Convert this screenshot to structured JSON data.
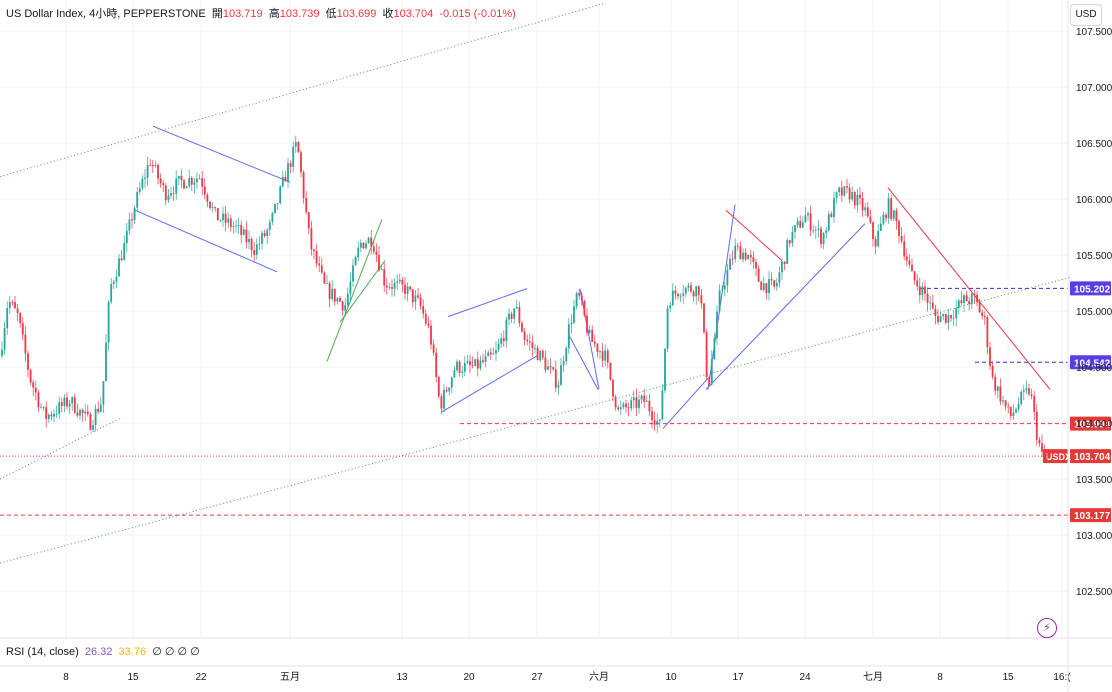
{
  "legend": {
    "symbol": "US Dollar Index, 4小時, PEPPERSTONE",
    "open_label": "開",
    "open": "103.719",
    "high_label": "高",
    "high": "103.739",
    "low_label": "低",
    "low": "103.699",
    "close_label": "收",
    "close": "103.704",
    "change": "-0.015 (-0.01%)"
  },
  "currency": "USD",
  "rsi": {
    "label": "RSI (14, close)",
    "value1": "26.32",
    "value2": "33.76",
    "ghost": "∅ ∅ ∅ ∅"
  },
  "colors": {
    "up": "#26a69a",
    "down": "#f23645",
    "channel": "#5c6bf5",
    "green_line": "#4caf50",
    "red_line": "#f23645",
    "dotted_green": "#43a047",
    "price_bg": "#e53935",
    "marker_bg": "#5b3de8"
  },
  "chart_data": {
    "type": "candlestick",
    "y_range": [
      102.3,
      107.75
    ],
    "y_ticks": [
      "107.500",
      "107.000",
      "106.500",
      "106.000",
      "105.500",
      "105.000",
      "104.500",
      "104.000",
      "103.500",
      "103.000",
      "102.500"
    ],
    "x_ticks": [
      {
        "label": "8",
        "x": 66
      },
      {
        "label": "15",
        "x": 133
      },
      {
        "label": "22",
        "x": 201
      },
      {
        "label": "五月",
        "x": 290
      },
      {
        "label": "13",
        "x": 402
      },
      {
        "label": "20",
        "x": 469
      },
      {
        "label": "27",
        "x": 537
      },
      {
        "label": "六月",
        "x": 599
      },
      {
        "label": "10",
        "x": 671
      },
      {
        "label": "17",
        "x": 738
      },
      {
        "label": "24",
        "x": 805
      },
      {
        "label": "七月",
        "x": 873
      },
      {
        "label": "8",
        "x": 940
      },
      {
        "label": "15",
        "x": 1008
      },
      {
        "label": "16:(",
        "x": 1062
      }
    ],
    "path_knots": [
      [
        0,
        104.6
      ],
      [
        8,
        105.1
      ],
      [
        18,
        104.95
      ],
      [
        30,
        104.4
      ],
      [
        45,
        104.05
      ],
      [
        70,
        104.2
      ],
      [
        90,
        104.0
      ],
      [
        102,
        104.2
      ],
      [
        110,
        105.2
      ],
      [
        125,
        105.6
      ],
      [
        135,
        105.95
      ],
      [
        150,
        106.35
      ],
      [
        165,
        106.05
      ],
      [
        180,
        106.15
      ],
      [
        200,
        106.2
      ],
      [
        215,
        105.85
      ],
      [
        235,
        105.75
      ],
      [
        255,
        105.55
      ],
      [
        270,
        105.75
      ],
      [
        285,
        106.2
      ],
      [
        297,
        106.5
      ],
      [
        310,
        105.6
      ],
      [
        325,
        105.2
      ],
      [
        345,
        105.05
      ],
      [
        360,
        105.6
      ],
      [
        372,
        105.65
      ],
      [
        385,
        105.25
      ],
      [
        405,
        105.2
      ],
      [
        420,
        105.05
      ],
      [
        430,
        104.8
      ],
      [
        440,
        104.15
      ],
      [
        455,
        104.5
      ],
      [
        475,
        104.5
      ],
      [
        495,
        104.6
      ],
      [
        515,
        105.05
      ],
      [
        525,
        104.75
      ],
      [
        540,
        104.6
      ],
      [
        558,
        104.35
      ],
      [
        570,
        104.9
      ],
      [
        578,
        105.15
      ],
      [
        590,
        104.75
      ],
      [
        605,
        104.6
      ],
      [
        618,
        104.1
      ],
      [
        630,
        104.15
      ],
      [
        645,
        104.2
      ],
      [
        660,
        103.97
      ],
      [
        668,
        105.1
      ],
      [
        680,
        105.2
      ],
      [
        700,
        105.2
      ],
      [
        708,
        104.3
      ],
      [
        720,
        105.15
      ],
      [
        735,
        105.55
      ],
      [
        748,
        105.5
      ],
      [
        760,
        105.25
      ],
      [
        775,
        105.2
      ],
      [
        790,
        105.65
      ],
      [
        805,
        105.85
      ],
      [
        822,
        105.65
      ],
      [
        838,
        106.05
      ],
      [
        850,
        106.05
      ],
      [
        865,
        105.9
      ],
      [
        875,
        105.6
      ],
      [
        888,
        105.95
      ],
      [
        898,
        105.75
      ],
      [
        912,
        105.3
      ],
      [
        925,
        105.15
      ],
      [
        935,
        104.95
      ],
      [
        948,
        104.95
      ],
      [
        965,
        105.1
      ],
      [
        975,
        105.1
      ],
      [
        985,
        104.9
      ],
      [
        992,
        104.4
      ],
      [
        1000,
        104.25
      ],
      [
        1010,
        104.05
      ],
      [
        1020,
        104.2
      ],
      [
        1030,
        104.3
      ],
      [
        1037,
        103.9
      ],
      [
        1042,
        103.7
      ],
      [
        1048,
        103.704
      ]
    ],
    "horizontal_levels": [
      {
        "value": 103.994,
        "label": "103.994",
        "x_start": 460,
        "style": "dashed-red"
      },
      {
        "value": 103.177,
        "label": "103.177",
        "x_start": 0,
        "style": "dashed-red"
      },
      {
        "value": 105.202,
        "label": "105.202",
        "x_start": 920,
        "style": "dashed-blue"
      },
      {
        "value": 104.542,
        "label": "104.542",
        "x_start": 975,
        "style": "dashed-blue"
      },
      {
        "value": 103.704,
        "label": "103.704",
        "x_start": 0,
        "style": "dotted-red"
      }
    ],
    "price_tag": {
      "symbol": "USDX",
      "value": "103.704"
    },
    "trendlines": [
      {
        "style": "dotted-green",
        "p1": [
          0,
          106.2
        ],
        "p2": [
          605,
          107.75
        ]
      },
      {
        "style": "dotted-green",
        "p1": [
          0,
          102.75
        ],
        "p2": [
          1070,
          105.3
        ]
      },
      {
        "style": "dotted-blue",
        "p1": [
          0,
          103.5
        ],
        "p2": [
          122,
          104.05
        ]
      },
      {
        "style": "channel",
        "p1": [
          153,
          106.65
        ],
        "p2": [
          290,
          106.15
        ]
      },
      {
        "style": "channel",
        "p1": [
          135,
          105.9
        ],
        "p2": [
          277,
          105.35
        ]
      },
      {
        "style": "green",
        "p1": [
          327,
          104.55
        ],
        "p2": [
          382,
          105.82
        ]
      },
      {
        "style": "green",
        "p1": [
          340,
          104.9
        ],
        "p2": [
          385,
          105.45
        ]
      },
      {
        "style": "channel",
        "p1": [
          448,
          104.95
        ],
        "p2": [
          527,
          105.2
        ]
      },
      {
        "style": "channel",
        "p1": [
          442,
          104.1
        ],
        "p2": [
          537,
          104.6
        ]
      },
      {
        "style": "channel",
        "p1": [
          580,
          105.2
        ],
        "p2": [
          599,
          104.3
        ]
      },
      {
        "style": "channel",
        "p1": [
          568,
          104.8
        ],
        "p2": [
          598,
          104.3
        ]
      },
      {
        "style": "channel",
        "p1": [
          663,
          103.95
        ],
        "p2": [
          708,
          104.4
        ]
      },
      {
        "style": "channel",
        "p1": [
          708,
          104.3
        ],
        "p2": [
          735,
          105.95
        ]
      },
      {
        "style": "channel",
        "p1": [
          706,
          104.3
        ],
        "p2": [
          865,
          105.78
        ]
      },
      {
        "style": "red",
        "p1": [
          726,
          105.9
        ],
        "p2": [
          782,
          105.45
        ]
      },
      {
        "style": "red",
        "p1": [
          888,
          106.1
        ],
        "p2": [
          1050,
          104.3
        ]
      }
    ]
  }
}
